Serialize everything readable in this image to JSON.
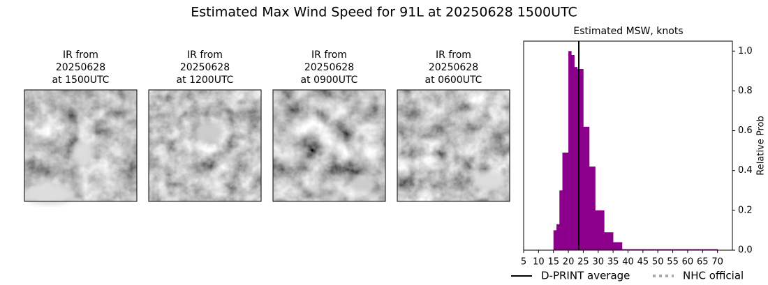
{
  "chart_data": {
    "type": "histogram",
    "title": "Estimated Max Wind Speed for 91L at 20250628 1500UTC",
    "panels": [
      {
        "lines": [
          "IR from",
          "20250628",
          "at 1500UTC"
        ]
      },
      {
        "lines": [
          "IR from",
          "20250628",
          "at 1200UTC"
        ]
      },
      {
        "lines": [
          "IR from",
          "20250628",
          "at 0900UTC"
        ]
      },
      {
        "lines": [
          "IR from",
          "20250628",
          "at 0600UTC"
        ]
      }
    ],
    "subtitle": "Estimated MSW, knots",
    "y_label": "Relative Prob",
    "color": "#8b008b",
    "bins": [
      15,
      16,
      17,
      18,
      19,
      20,
      21,
      22,
      23,
      24,
      25,
      26,
      27,
      28,
      29,
      30,
      31,
      32,
      33,
      34,
      35,
      36,
      37,
      38,
      39,
      40,
      41,
      42,
      43,
      44,
      45,
      46,
      47,
      48,
      49,
      50,
      51,
      52,
      53,
      54,
      55,
      56,
      57,
      58,
      59,
      60,
      61,
      62,
      63,
      64,
      65,
      66,
      67,
      68,
      69,
      70
    ],
    "values": [
      0.1,
      0.13,
      0.3,
      0.49,
      0.49,
      1.0,
      0.98,
      0.92,
      0.91,
      0.91,
      0.62,
      0.62,
      0.42,
      0.42,
      0.2,
      0.2,
      0.2,
      0.09,
      0.09,
      0.09,
      0.04,
      0.04,
      0.04,
      0.005,
      0.005,
      0.005,
      0.005,
      0.005,
      0.005,
      0.005,
      0.005,
      0.005,
      0.005,
      0.005,
      0.005,
      0.005,
      0.005,
      0.005,
      0.005,
      0.005,
      0.005,
      0.005,
      0.005,
      0.005,
      0.005,
      0.005,
      0.005,
      0.005,
      0.005,
      0.005,
      0.005,
      0.005,
      0.005,
      0.005,
      0.005
    ],
    "xlim": [
      5,
      75
    ],
    "xticks": [
      5,
      10,
      15,
      20,
      25,
      30,
      35,
      40,
      45,
      50,
      55,
      60,
      65,
      70
    ],
    "ylim": [
      0,
      1.05
    ],
    "yticks": [
      {
        "value": 0,
        "label": "0.0"
      },
      0.2,
      0.4,
      0.6,
      0.8,
      {
        "value": 1,
        "label": "1.0"
      }
    ],
    "dprint_average": 23.5,
    "legend": [
      {
        "name": "D-PRINT average",
        "color": "#000000",
        "style": "solid"
      },
      {
        "name": "NHC official",
        "color": "#aaaaaa",
        "style": "dotted"
      }
    ]
  }
}
